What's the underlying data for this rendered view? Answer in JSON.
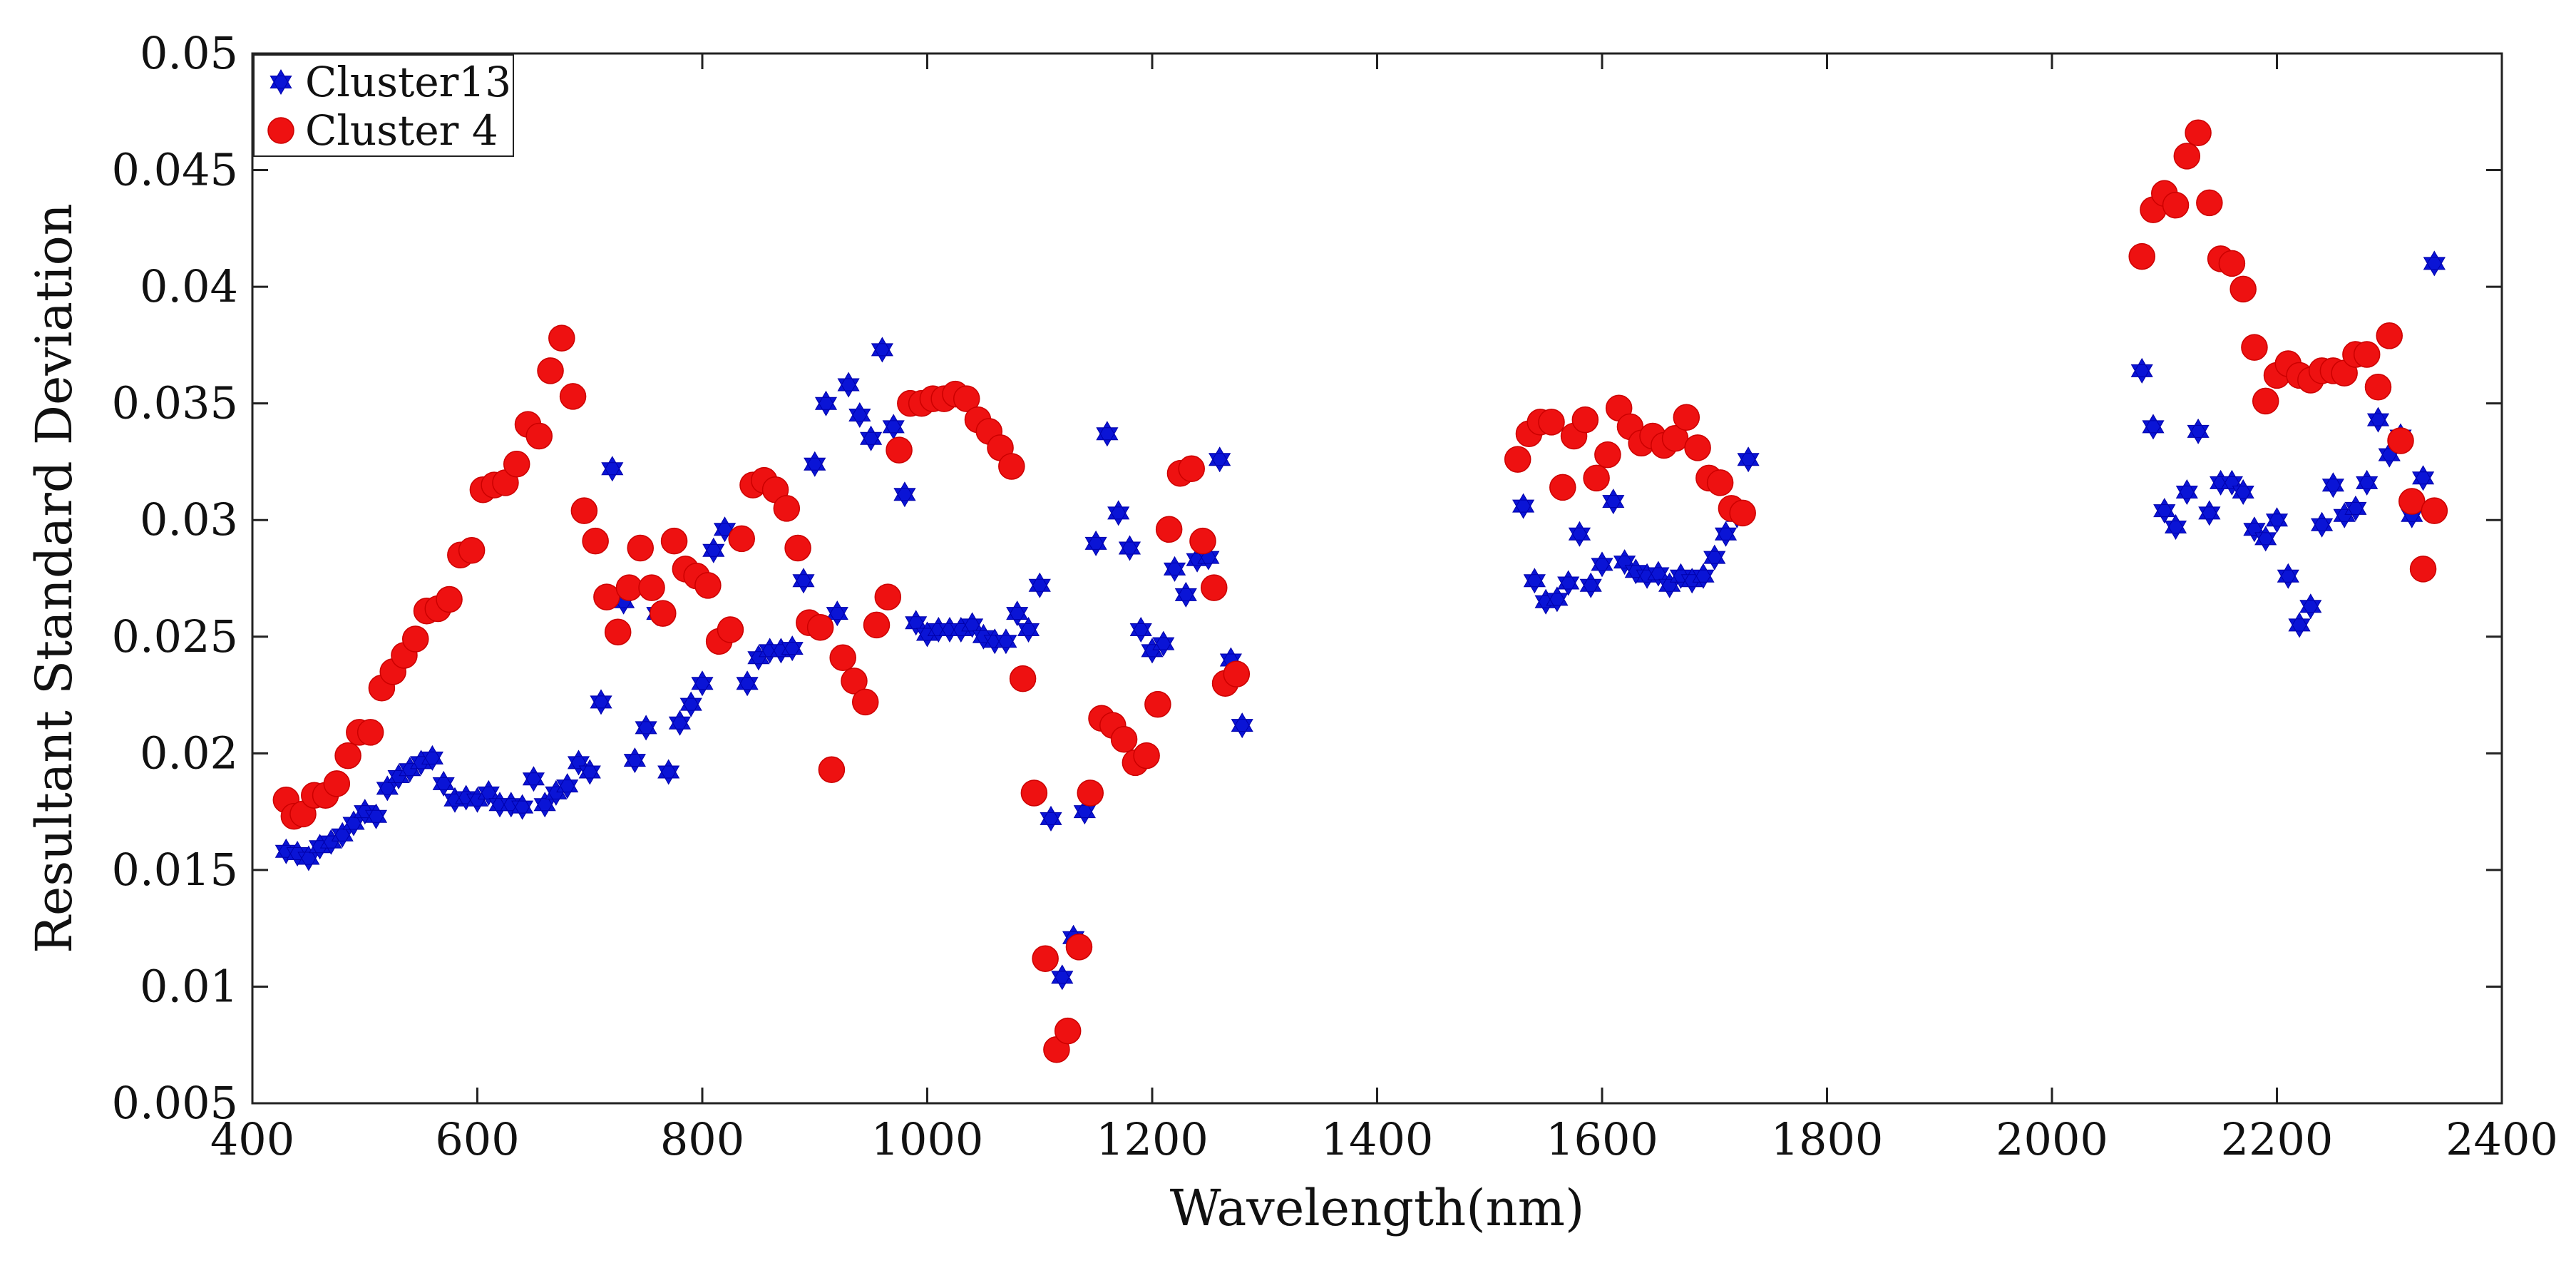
{
  "chart_data": {
    "type": "scatter",
    "title": "",
    "xlabel": "Wavelength(nm)",
    "ylabel": "Resultant Standard Deviation",
    "xlim": [
      400,
      2400
    ],
    "ylim": [
      0.005,
      0.05
    ],
    "xticks": [
      400,
      600,
      800,
      1000,
      1200,
      1400,
      1600,
      1800,
      2000,
      2200,
      2400
    ],
    "xtick_labels": [
      "400",
      "600",
      "800",
      "1000",
      "1200",
      "1400",
      "1600",
      "1800",
      "2000",
      "2200",
      "2400"
    ],
    "yticks": [
      0.005,
      0.01,
      0.015,
      0.02,
      0.025,
      0.03,
      0.035,
      0.04,
      0.045,
      0.05
    ],
    "ytick_labels": [
      "0.005",
      "0.01",
      "0.015",
      "0.02",
      "0.025",
      "0.03",
      "0.035",
      "0.04",
      "0.045",
      "0.05"
    ],
    "grid": false,
    "legend_position": "top-left",
    "series": [
      {
        "name": "Cluster13",
        "marker": "hexagram",
        "color": "#0a14d6",
        "points": [
          [
            430,
            0.0158
          ],
          [
            440,
            0.0157
          ],
          [
            450,
            0.0155
          ],
          [
            460,
            0.016
          ],
          [
            470,
            0.0162
          ],
          [
            480,
            0.0165
          ],
          [
            490,
            0.017
          ],
          [
            500,
            0.0175
          ],
          [
            510,
            0.0173
          ],
          [
            520,
            0.0185
          ],
          [
            530,
            0.019
          ],
          [
            540,
            0.0193
          ],
          [
            550,
            0.0196
          ],
          [
            560,
            0.0198
          ],
          [
            570,
            0.0187
          ],
          [
            580,
            0.018
          ],
          [
            590,
            0.0181
          ],
          [
            600,
            0.018
          ],
          [
            610,
            0.0183
          ],
          [
            620,
            0.0178
          ],
          [
            630,
            0.0178
          ],
          [
            640,
            0.0177
          ],
          [
            650,
            0.0189
          ],
          [
            660,
            0.0178
          ],
          [
            670,
            0.0183
          ],
          [
            680,
            0.0186
          ],
          [
            690,
            0.0196
          ],
          [
            700,
            0.0192
          ],
          [
            710,
            0.0222
          ],
          [
            720,
            0.0322
          ],
          [
            730,
            0.0265
          ],
          [
            740,
            0.0197
          ],
          [
            750,
            0.0211
          ],
          [
            760,
            0.026
          ],
          [
            770,
            0.0192
          ],
          [
            780,
            0.0213
          ],
          [
            790,
            0.0221
          ],
          [
            800,
            0.023
          ],
          [
            810,
            0.0287
          ],
          [
            820,
            0.0296
          ],
          [
            840,
            0.023
          ],
          [
            850,
            0.0241
          ],
          [
            860,
            0.0244
          ],
          [
            870,
            0.0244
          ],
          [
            880,
            0.0245
          ],
          [
            890,
            0.0274
          ],
          [
            900,
            0.0324
          ],
          [
            910,
            0.035
          ],
          [
            920,
            0.026
          ],
          [
            930,
            0.0358
          ],
          [
            940,
            0.0345
          ],
          [
            950,
            0.0335
          ],
          [
            960,
            0.0373
          ],
          [
            970,
            0.034
          ],
          [
            980,
            0.0311
          ],
          [
            990,
            0.0256
          ],
          [
            1000,
            0.0251
          ],
          [
            1010,
            0.0253
          ],
          [
            1020,
            0.0253
          ],
          [
            1030,
            0.0253
          ],
          [
            1040,
            0.0255
          ],
          [
            1050,
            0.025
          ],
          [
            1060,
            0.0248
          ],
          [
            1070,
            0.0248
          ],
          [
            1080,
            0.026
          ],
          [
            1090,
            0.0253
          ],
          [
            1100,
            0.0272
          ],
          [
            1110,
            0.0172
          ],
          [
            1120,
            0.0104
          ],
          [
            1130,
            0.0121
          ],
          [
            1140,
            0.0175
          ],
          [
            1150,
            0.029
          ],
          [
            1160,
            0.0337
          ],
          [
            1170,
            0.0303
          ],
          [
            1180,
            0.0288
          ],
          [
            1190,
            0.0253
          ],
          [
            1200,
            0.0244
          ],
          [
            1210,
            0.0247
          ],
          [
            1220,
            0.0279
          ],
          [
            1230,
            0.0268
          ],
          [
            1240,
            0.0283
          ],
          [
            1250,
            0.0284
          ],
          [
            1260,
            0.0326
          ],
          [
            1270,
            0.024
          ],
          [
            1280,
            0.0212
          ],
          [
            1530,
            0.0306
          ],
          [
            1540,
            0.0274
          ],
          [
            1550,
            0.0265
          ],
          [
            1560,
            0.0266
          ],
          [
            1570,
            0.0273
          ],
          [
            1580,
            0.0294
          ],
          [
            1590,
            0.0272
          ],
          [
            1600,
            0.0281
          ],
          [
            1610,
            0.0308
          ],
          [
            1620,
            0.0282
          ],
          [
            1630,
            0.0278
          ],
          [
            1640,
            0.0276
          ],
          [
            1650,
            0.0277
          ],
          [
            1660,
            0.0272
          ],
          [
            1670,
            0.0276
          ],
          [
            1680,
            0.0274
          ],
          [
            1690,
            0.0276
          ],
          [
            1700,
            0.0284
          ],
          [
            1710,
            0.0294
          ],
          [
            1720,
            0.0302
          ],
          [
            1730,
            0.0326
          ],
          [
            2080,
            0.0364
          ],
          [
            2090,
            0.034
          ],
          [
            2100,
            0.0304
          ],
          [
            2110,
            0.0297
          ],
          [
            2120,
            0.0312
          ],
          [
            2130,
            0.0338
          ],
          [
            2140,
            0.0303
          ],
          [
            2150,
            0.0316
          ],
          [
            2160,
            0.0316
          ],
          [
            2170,
            0.0312
          ],
          [
            2180,
            0.0296
          ],
          [
            2190,
            0.0292
          ],
          [
            2200,
            0.03
          ],
          [
            2210,
            0.0276
          ],
          [
            2220,
            0.0255
          ],
          [
            2230,
            0.0263
          ],
          [
            2240,
            0.0298
          ],
          [
            2250,
            0.0315
          ],
          [
            2260,
            0.0302
          ],
          [
            2270,
            0.0305
          ],
          [
            2280,
            0.0316
          ],
          [
            2290,
            0.0343
          ],
          [
            2300,
            0.0328
          ],
          [
            2310,
            0.0336
          ],
          [
            2320,
            0.0302
          ],
          [
            2330,
            0.0318
          ],
          [
            2340,
            0.041
          ]
        ]
      },
      {
        "name": "Cluster 4",
        "marker": "circle",
        "color": "#ee1111",
        "points": [
          [
            430,
            0.018
          ],
          [
            437,
            0.0173
          ],
          [
            445,
            0.0174
          ],
          [
            455,
            0.0182
          ],
          [
            465,
            0.0182
          ],
          [
            475,
            0.0187
          ],
          [
            485,
            0.0199
          ],
          [
            495,
            0.0209
          ],
          [
            505,
            0.0209
          ],
          [
            515,
            0.0228
          ],
          [
            525,
            0.0235
          ],
          [
            535,
            0.0242
          ],
          [
            545,
            0.0249
          ],
          [
            555,
            0.0261
          ],
          [
            565,
            0.0262
          ],
          [
            575,
            0.0266
          ],
          [
            585,
            0.0285
          ],
          [
            595,
            0.0287
          ],
          [
            605,
            0.0313
          ],
          [
            615,
            0.0315
          ],
          [
            625,
            0.0316
          ],
          [
            635,
            0.0324
          ],
          [
            645,
            0.0341
          ],
          [
            655,
            0.0336
          ],
          [
            665,
            0.0364
          ],
          [
            675,
            0.0378
          ],
          [
            685,
            0.0353
          ],
          [
            695,
            0.0304
          ],
          [
            705,
            0.0291
          ],
          [
            715,
            0.0267
          ],
          [
            725,
            0.0252
          ],
          [
            735,
            0.0271
          ],
          [
            745,
            0.0288
          ],
          [
            755,
            0.0271
          ],
          [
            765,
            0.026
          ],
          [
            775,
            0.0291
          ],
          [
            785,
            0.0279
          ],
          [
            795,
            0.0276
          ],
          [
            805,
            0.0272
          ],
          [
            815,
            0.0248
          ],
          [
            825,
            0.0253
          ],
          [
            835,
            0.0292
          ],
          [
            845,
            0.0315
          ],
          [
            855,
            0.0317
          ],
          [
            865,
            0.0313
          ],
          [
            875,
            0.0305
          ],
          [
            885,
            0.0288
          ],
          [
            895,
            0.0256
          ],
          [
            905,
            0.0254
          ],
          [
            915,
            0.0193
          ],
          [
            925,
            0.0241
          ],
          [
            935,
            0.0231
          ],
          [
            945,
            0.0222
          ],
          [
            955,
            0.0255
          ],
          [
            965,
            0.0267
          ],
          [
            975,
            0.033
          ],
          [
            985,
            0.035
          ],
          [
            995,
            0.035
          ],
          [
            1005,
            0.0352
          ],
          [
            1015,
            0.0352
          ],
          [
            1025,
            0.0354
          ],
          [
            1035,
            0.0352
          ],
          [
            1045,
            0.0343
          ],
          [
            1055,
            0.0338
          ],
          [
            1065,
            0.0331
          ],
          [
            1075,
            0.0323
          ],
          [
            1085,
            0.0232
          ],
          [
            1095,
            0.0183
          ],
          [
            1105,
            0.0112
          ],
          [
            1115,
            0.0073
          ],
          [
            1125,
            0.0081
          ],
          [
            1135,
            0.0117
          ],
          [
            1145,
            0.0183
          ],
          [
            1155,
            0.0215
          ],
          [
            1165,
            0.0212
          ],
          [
            1175,
            0.0206
          ],
          [
            1185,
            0.0196
          ],
          [
            1195,
            0.0199
          ],
          [
            1205,
            0.0221
          ],
          [
            1215,
            0.0296
          ],
          [
            1225,
            0.032
          ],
          [
            1235,
            0.0322
          ],
          [
            1245,
            0.0291
          ],
          [
            1255,
            0.0271
          ],
          [
            1265,
            0.023
          ],
          [
            1275,
            0.0234
          ],
          [
            1525,
            0.0326
          ],
          [
            1535,
            0.0337
          ],
          [
            1545,
            0.0342
          ],
          [
            1555,
            0.0342
          ],
          [
            1565,
            0.0314
          ],
          [
            1575,
            0.0336
          ],
          [
            1585,
            0.0343
          ],
          [
            1595,
            0.0318
          ],
          [
            1605,
            0.0328
          ],
          [
            1615,
            0.0348
          ],
          [
            1625,
            0.034
          ],
          [
            1635,
            0.0333
          ],
          [
            1645,
            0.0336
          ],
          [
            1655,
            0.0332
          ],
          [
            1665,
            0.0335
          ],
          [
            1675,
            0.0344
          ],
          [
            1685,
            0.0331
          ],
          [
            1695,
            0.0318
          ],
          [
            1705,
            0.0316
          ],
          [
            1715,
            0.0305
          ],
          [
            1725,
            0.0303
          ],
          [
            2080,
            0.0413
          ],
          [
            2090,
            0.0433
          ],
          [
            2100,
            0.044
          ],
          [
            2110,
            0.0435
          ],
          [
            2120,
            0.0456
          ],
          [
            2130,
            0.0466
          ],
          [
            2140,
            0.0436
          ],
          [
            2150,
            0.0412
          ],
          [
            2160,
            0.041
          ],
          [
            2170,
            0.0399
          ],
          [
            2180,
            0.0374
          ],
          [
            2190,
            0.0351
          ],
          [
            2200,
            0.0362
          ],
          [
            2210,
            0.0367
          ],
          [
            2220,
            0.0362
          ],
          [
            2230,
            0.036
          ],
          [
            2240,
            0.0364
          ],
          [
            2250,
            0.0364
          ],
          [
            2260,
            0.0363
          ],
          [
            2270,
            0.0371
          ],
          [
            2280,
            0.0371
          ],
          [
            2290,
            0.0357
          ],
          [
            2300,
            0.0379
          ],
          [
            2310,
            0.0334
          ],
          [
            2320,
            0.0308
          ],
          [
            2330,
            0.0279
          ],
          [
            2340,
            0.0304
          ]
        ]
      }
    ]
  }
}
